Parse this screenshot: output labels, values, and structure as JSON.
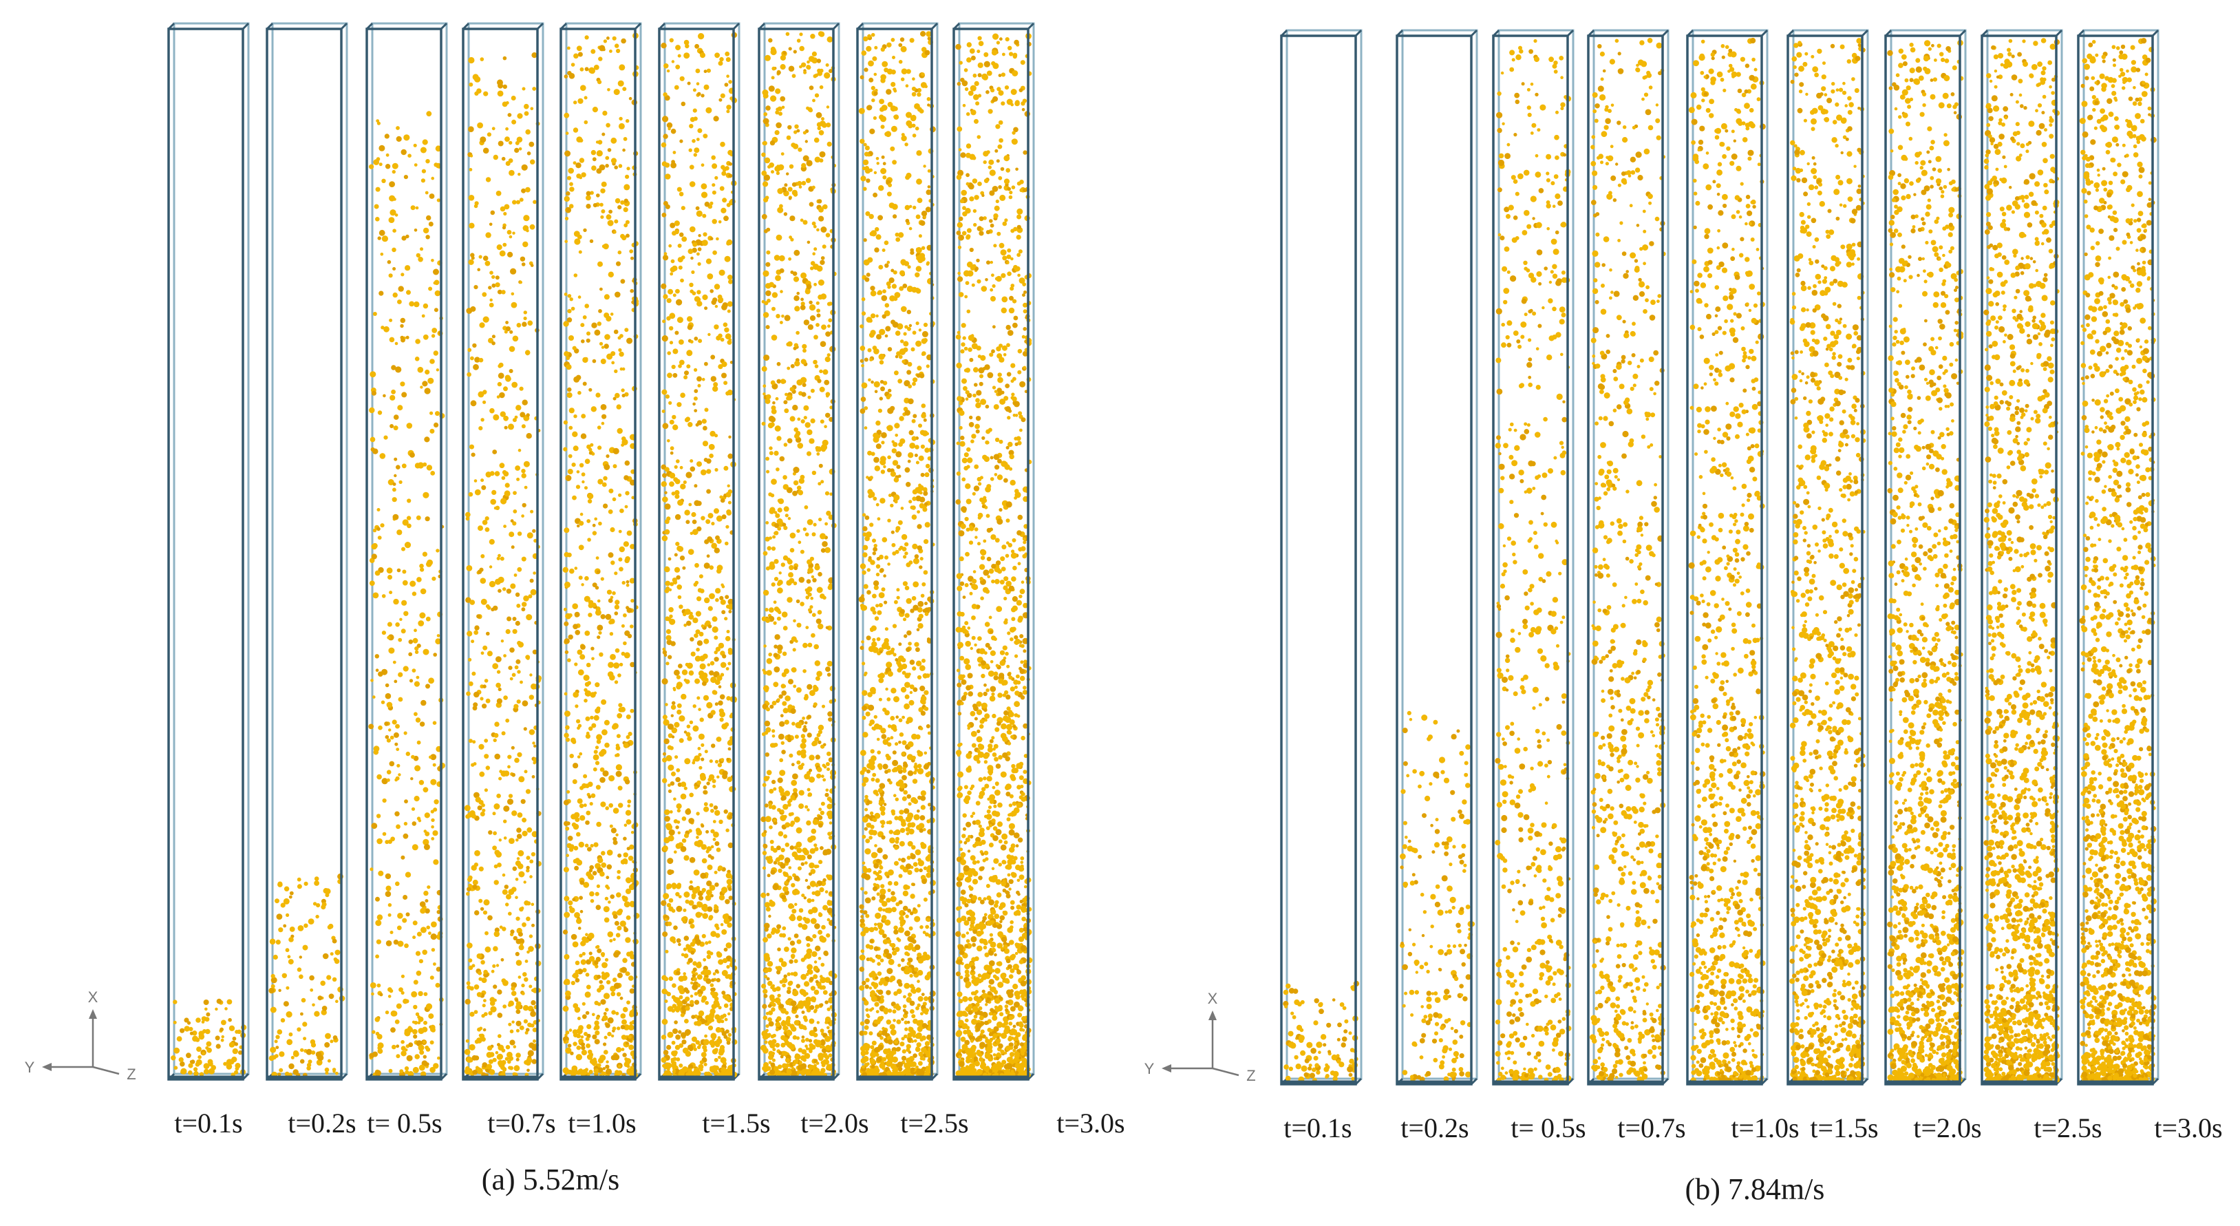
{
  "colors": {
    "particle": "#f2b705",
    "particle_dark": "#e0a000",
    "column_edge": "#35596e",
    "column_inner": "#8fb3c4",
    "axis_gizmo": "#777777",
    "text": "#1a1a1a"
  },
  "panels": [
    {
      "id": "a",
      "caption": "(a) 5.52m/s",
      "axis_gizmo": {
        "x": "X",
        "y": "Y",
        "z": "Z"
      },
      "columns": [
        {
          "label": "t=0.1s",
          "fill_level": 0.08,
          "density": 0.9
        },
        {
          "label": "t=0.2s",
          "fill_level": 0.2,
          "density": 0.9
        },
        {
          "label": "t= 0.5s",
          "fill_level": 0.93,
          "density": 1.1
        },
        {
          "label": "t=0.7s",
          "fill_level": 0.98,
          "density": 1.5
        },
        {
          "label": "t=1.0s",
          "fill_level": 1.0,
          "density": 2.0
        },
        {
          "label": "t=1.5s",
          "fill_level": 1.0,
          "density": 2.6
        },
        {
          "label": "t=2.0s",
          "fill_level": 1.0,
          "density": 3.0
        },
        {
          "label": "t=2.5s",
          "fill_level": 1.0,
          "density": 3.4
        },
        {
          "label": "t=3.0s",
          "fill_level": 1.0,
          "density": 3.8
        }
      ]
    },
    {
      "id": "b",
      "caption": "(b) 7.84m/s",
      "axis_gizmo": {
        "x": "X",
        "y": "Y",
        "z": "Z"
      },
      "columns": [
        {
          "label": "t=0.1s",
          "fill_level": 0.1,
          "density": 0.9
        },
        {
          "label": "t=0.2s",
          "fill_level": 0.36,
          "density": 0.9
        },
        {
          "label": "t= 0.5s",
          "fill_level": 1.0,
          "density": 1.2
        },
        {
          "label": "t=0.7s",
          "fill_level": 1.0,
          "density": 1.6
        },
        {
          "label": "t=1.0s",
          "fill_level": 1.0,
          "density": 2.2
        },
        {
          "label": "t=1.5s",
          "fill_level": 1.0,
          "density": 2.8
        },
        {
          "label": "t=2.0s",
          "fill_level": 1.0,
          "density": 3.2
        },
        {
          "label": "t=2.5s",
          "fill_level": 1.0,
          "density": 3.6
        },
        {
          "label": "t=3.0s",
          "fill_level": 1.0,
          "density": 3.9
        }
      ]
    }
  ]
}
